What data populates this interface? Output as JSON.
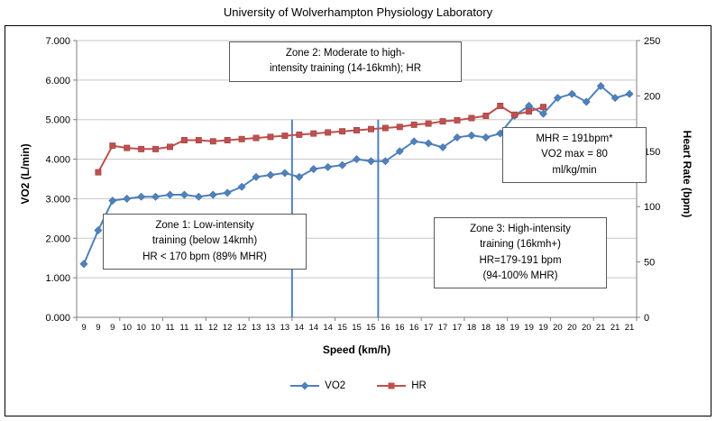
{
  "chart_data": {
    "type": "line",
    "title": "University of Wolverhampton Physiology Laboratory",
    "xlabel": "Speed (km/h)",
    "ylabel_left": "VO2 (L/min)",
    "ylabel_right": "Heart Rate (bpm)",
    "grid": true,
    "legend_position": "bottom",
    "axis_left": {
      "min": 0,
      "max": 7,
      "step": 1,
      "tick_labels": [
        "0.000",
        "1.000",
        "2.000",
        "3.000",
        "4.000",
        "5.000",
        "6.000",
        "7.000"
      ]
    },
    "axis_right": {
      "min": 0,
      "max": 250,
      "step": 50,
      "tick_labels": [
        "0",
        "50",
        "100",
        "150",
        "200",
        "250"
      ]
    },
    "categories": [
      "9",
      "9",
      "9",
      "10",
      "10",
      "10",
      "11",
      "11",
      "11",
      "12",
      "12",
      "12",
      "13",
      "13",
      "13",
      "14",
      "14",
      "14",
      "15",
      "15",
      "15",
      "16",
      "16",
      "16",
      "17",
      "17",
      "17",
      "18",
      "18",
      "18",
      "19",
      "19",
      "19",
      "20",
      "20",
      "20",
      "21",
      "21",
      "21"
    ],
    "series": [
      {
        "name": "VO2",
        "axis": "left",
        "color": "#4F81BD",
        "marker": "diamond",
        "values": [
          1.35,
          2.2,
          2.95,
          3.0,
          3.05,
          3.05,
          3.1,
          3.1,
          3.05,
          3.1,
          3.15,
          3.3,
          3.55,
          3.6,
          3.65,
          3.55,
          3.75,
          3.8,
          3.85,
          4.0,
          3.95,
          3.95,
          4.2,
          4.45,
          4.4,
          4.3,
          4.55,
          4.6,
          4.55,
          4.65,
          5.1,
          5.35,
          5.15,
          5.55,
          5.65,
          5.45,
          5.85,
          5.55,
          5.65
        ]
      },
      {
        "name": "HR",
        "axis": "right",
        "color": "#C0504D",
        "marker": "square",
        "values": [
          null,
          131,
          155,
          153,
          152,
          152,
          154,
          160,
          160,
          159,
          160,
          161,
          162,
          163,
          164,
          165,
          166,
          167,
          168,
          169,
          170,
          171,
          172,
          174,
          175,
          177,
          178,
          180,
          182,
          191,
          183,
          186,
          190,
          null,
          null,
          null,
          null,
          null,
          null
        ]
      }
    ],
    "zone_boundaries": {
      "speeds": [
        "14",
        "16"
      ],
      "line_color": "#4F81BD",
      "top_value": 5.0
    }
  },
  "annotations": {
    "zone2": {
      "lines": [
        "Zone 2: Moderate to high-",
        "intensity training (14-16kmh); HR"
      ]
    },
    "zone1": {
      "lines": [
        "Zone 1: Low-intensity",
        "training (below 14kmh)",
        "HR < 170 bpm (89% MHR)"
      ]
    },
    "zone3": {
      "lines": [
        "Zone 3: High-intensity",
        "training (16kmh+)",
        "HR=179-191 bpm",
        "(94-100% MHR)"
      ]
    },
    "mhr": {
      "lines": [
        "MHR = 191bpm*",
        "VO2 max = 80",
        "ml/kg/min"
      ]
    }
  },
  "legend": {
    "items": [
      {
        "label": "VO2",
        "color": "#4F81BD",
        "marker": "diamond"
      },
      {
        "label": "HR",
        "color": "#C0504D",
        "marker": "square"
      }
    ]
  }
}
